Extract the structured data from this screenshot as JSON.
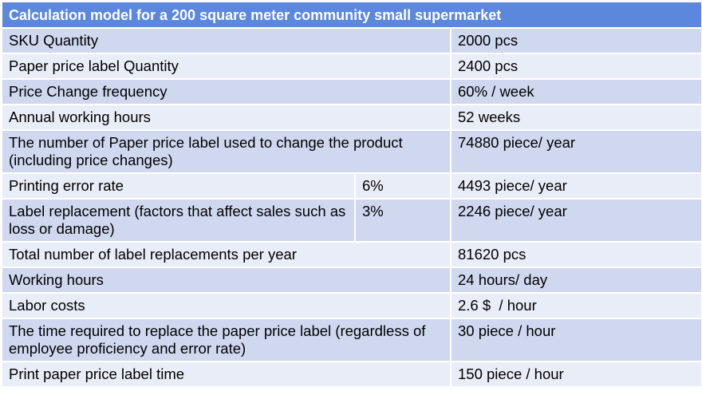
{
  "table": {
    "title": "Calculation model for a 200 square meter community small supermarket",
    "rows": [
      {
        "label": "SKU Quantity",
        "pct": "",
        "value": "2000 pcs"
      },
      {
        "label": "Paper price label Quantity",
        "pct": "",
        "value": "2400 pcs"
      },
      {
        "label": "Price Change frequency",
        "pct": "",
        "value": "60% / week"
      },
      {
        "label": "Annual working hours",
        "pct": "",
        "value": "52 weeks"
      },
      {
        "label": "The number of Paper price label used to change the product (including price changes)",
        "pct": "",
        "value": "74880 piece/ year"
      },
      {
        "label": "Printing error rate",
        "pct": "6%",
        "value": "4493 piece/ year"
      },
      {
        "label": "Label replacement (factors that affect sales such as loss or damage)",
        "pct": "3%",
        "value": "2246 piece/ year"
      },
      {
        "label": "Total number of label replacements per year",
        "pct": "",
        "value": "81620 pcs"
      },
      {
        "label": "Working hours",
        "pct": "",
        "value": "24 hours/ day"
      },
      {
        "label": "Labor costs",
        "pct": "",
        "value": "2.6 $  / hour"
      },
      {
        "label": "The time required to replace the paper price label (regardless of employee proficiency and error rate)",
        "pct": "",
        "value": "30 piece / hour"
      },
      {
        "label": "Print paper price label time",
        "pct": "",
        "value": "150 piece / hour"
      }
    ]
  }
}
